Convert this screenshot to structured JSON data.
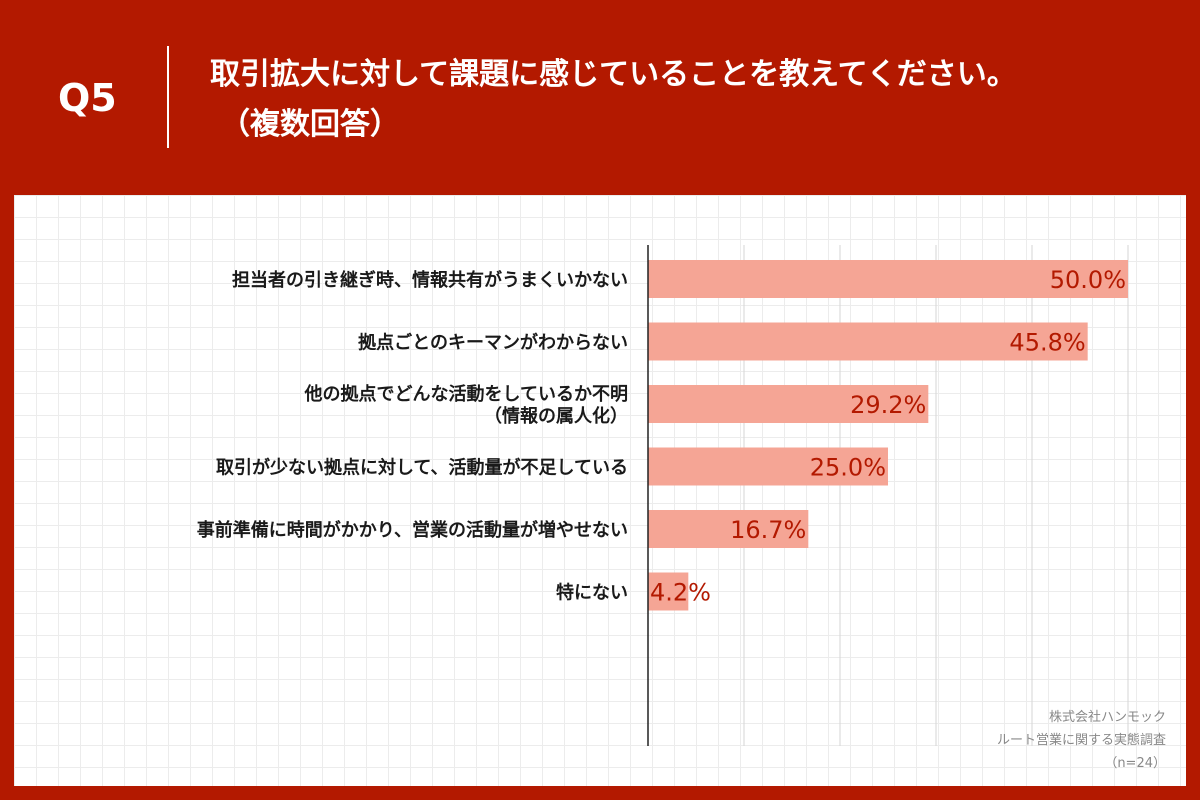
{
  "header": {
    "question_number": "Q5",
    "title_line1": "取引拡大に対して課題に感じていることを教えてください。",
    "title_line2": "（複数回答）"
  },
  "chart_data": {
    "type": "bar",
    "orientation": "horizontal",
    "categories": [
      [
        "担当者の引き継ぎ時、情報共有がうまくいかない"
      ],
      [
        "拠点ごとのキーマンがわからない"
      ],
      [
        "他の拠点でどんな活動をしているか不明",
        "（情報の属人化）"
      ],
      [
        "取引が少ない拠点に対して、活動量が不足している"
      ],
      [
        "事前準備に時間がかかり、営業の活動量が増やせない"
      ],
      [
        "特にない"
      ]
    ],
    "values": [
      50.0,
      45.8,
      29.2,
      25.0,
      16.7,
      4.2
    ],
    "value_labels": [
      "50.0%",
      "45.8%",
      "29.2%",
      "25.0%",
      "16.7%",
      "4.2%"
    ],
    "xlim": [
      0,
      50
    ],
    "grid": true,
    "bar_color": "#f5a595",
    "label_color": "#b31900"
  },
  "source": {
    "line1": "株式会社ハンモック",
    "line2": "ルート営業に関する実態調査",
    "line3": "（n=24）"
  }
}
